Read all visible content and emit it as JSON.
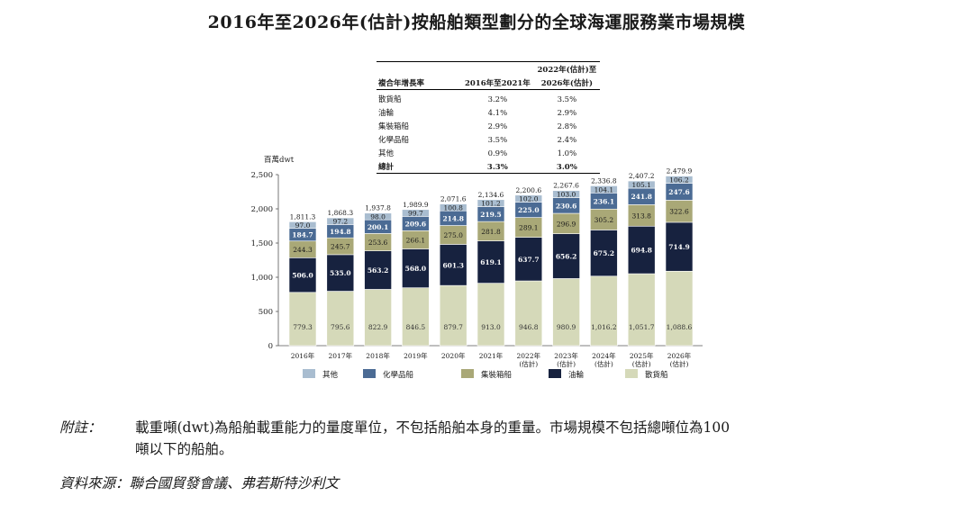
{
  "title": "2016年至2026年(估計)按船舶類型劃分的全球海運服務業市場規模",
  "cagr_table": {
    "col1": "複合年增長率",
    "col2": "2016年至2021年",
    "col3_line1": "2022年(估計)至",
    "col3_line2": "2026年(估計)",
    "rows": [
      {
        "name": "散貨船",
        "a": "3.2%",
        "b": "3.5%"
      },
      {
        "name": "油輪",
        "a": "4.1%",
        "b": "2.9%"
      },
      {
        "name": "集裝箱船",
        "a": "2.9%",
        "b": "2.8%"
      },
      {
        "name": "化學品船",
        "a": "3.5%",
        "b": "2.4%"
      },
      {
        "name": "其他",
        "a": "0.9%",
        "b": "1.0%"
      }
    ],
    "total": {
      "name": "總計",
      "a": "3.3%",
      "b": "3.0%"
    }
  },
  "chart_data": {
    "type": "bar",
    "stacked": true,
    "ylabel": "百萬dwt",
    "ylim": [
      0,
      2500
    ],
    "yticks": [
      "0",
      "500",
      "1,000",
      "1,500",
      "2,000",
      "2,500"
    ],
    "categories": [
      [
        "2016年"
      ],
      [
        "2017年"
      ],
      [
        "2018年"
      ],
      [
        "2019年"
      ],
      [
        "2020年"
      ],
      [
        "2021年"
      ],
      [
        "2022年",
        "(估計)"
      ],
      [
        "2023年",
        "(估計)"
      ],
      [
        "2024年",
        "(估計)"
      ],
      [
        "2025年",
        "(估計)"
      ],
      [
        "2026年",
        "(估計)"
      ]
    ],
    "series": [
      {
        "name": "散貨船",
        "color": "#d5d9b9",
        "textColor": "#333333",
        "values": [
          779.3,
          795.6,
          822.9,
          846.5,
          879.7,
          913.0,
          946.8,
          980.9,
          1016.2,
          1051.7,
          1088.6
        ],
        "labels": [
          "779.3",
          "795.6",
          "822.9",
          "846.5",
          "879.7",
          "913.0",
          "946.8",
          "980.9",
          "1,016.2",
          "1,051.7",
          "1,088.6"
        ]
      },
      {
        "name": "油輪",
        "color": "#17223f",
        "textColor": "#ffffff",
        "values": [
          506.0,
          535.0,
          563.2,
          568.0,
          601.3,
          619.1,
          637.7,
          656.2,
          675.2,
          694.8,
          714.9
        ],
        "labels": [
          "506.0",
          "535.0",
          "563.2",
          "568.0",
          "601.3",
          "619.1",
          "637.7",
          "656.2",
          "675.2",
          "694.8",
          "714.9"
        ]
      },
      {
        "name": "集裝箱船",
        "color": "#a9a877",
        "textColor": "#1a1a1a",
        "values": [
          244.3,
          245.7,
          253.6,
          266.1,
          275.0,
          281.8,
          289.1,
          296.9,
          305.2,
          313.8,
          322.6
        ],
        "labels": [
          "244.3",
          "245.7",
          "253.6",
          "266.1",
          "275.0",
          "281.8",
          "289.1",
          "296.9",
          "305.2",
          "313.8",
          "322.6"
        ]
      },
      {
        "name": "化學品船",
        "color": "#4b6b94",
        "textColor": "#ffffff",
        "values": [
          184.7,
          194.8,
          200.1,
          209.6,
          214.8,
          219.5,
          225.0,
          230.6,
          236.1,
          241.8,
          247.6
        ],
        "labels": [
          "184.7",
          "194.8",
          "200.1",
          "209.6",
          "214.8",
          "219.5",
          "225.0",
          "230.6",
          "236.1",
          "241.8",
          "247.6"
        ]
      },
      {
        "name": "其他",
        "color": "#a9bdd0",
        "textColor": "#1a1a1a",
        "values": [
          97.0,
          97.2,
          98.0,
          99.7,
          100.8,
          101.2,
          102.0,
          103.0,
          104.1,
          105.1,
          106.2
        ],
        "labels": [
          "97.0",
          "97.2",
          "98.0",
          "99.7",
          "100.8",
          "101.2",
          "102.0",
          "103.0",
          "104.1",
          "105.1",
          "106.2"
        ]
      }
    ],
    "totals": [
      "1,811.3",
      "1,868.3",
      "1,937.8",
      "1,989.9",
      "2,071.6",
      "2,134.6",
      "2,200.6",
      "2,267.6",
      "2,336.8",
      "2,407.2",
      "2,479.9"
    ],
    "legend_order": [
      "其他",
      "化學品船",
      "集裝箱船",
      "油輪",
      "散貨船"
    ],
    "legend_position": "bottom"
  },
  "note": {
    "label": "附註：",
    "line1": "載重噸(dwt)為船舶載重能力的量度單位，不包括船舶本身的重量。市場規模不包括總噸位為100",
    "line2": "噸以下的船舶。"
  },
  "source": "資料來源：聯合國貿發會議、弗若斯特沙利文"
}
